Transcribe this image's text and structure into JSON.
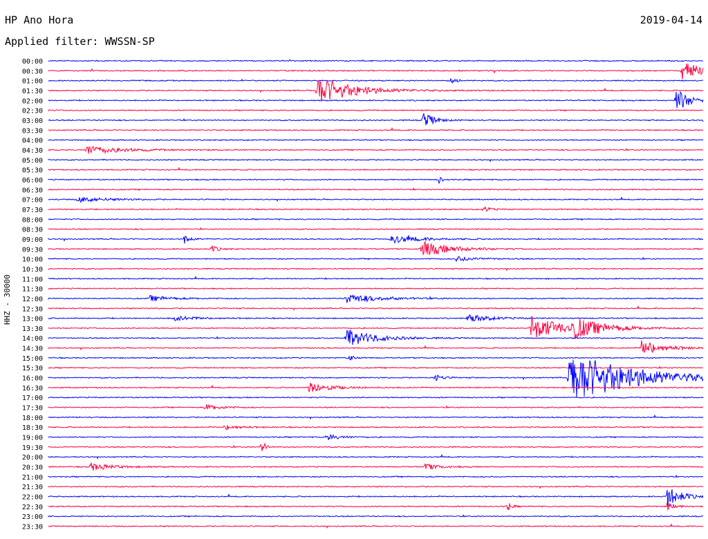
{
  "header": {
    "station": "HP Ano Hora",
    "date": "2019-04-14",
    "filter": "Applied filter: WWSSN-SP"
  },
  "yaxis_label": "HHZ - 30000",
  "colors": {
    "even_trace": "#0000ff",
    "odd_trace": "#ff0040",
    "text": "#000000"
  },
  "chart_data": {
    "type": "helicorder",
    "row_labels": [
      "00:00",
      "00:30",
      "01:00",
      "01:30",
      "02:00",
      "02:30",
      "03:00",
      "03:30",
      "04:00",
      "04:30",
      "05:00",
      "05:30",
      "06:00",
      "06:30",
      "07:00",
      "07:30",
      "08:00",
      "08:30",
      "09:00",
      "09:30",
      "10:00",
      "10:30",
      "11:00",
      "11:30",
      "12:00",
      "12:30",
      "13:00",
      "13:30",
      "14:00",
      "14:30",
      "15:00",
      "15:30",
      "16:00",
      "16:30",
      "17:00",
      "17:30",
      "18:00",
      "18:30",
      "19:00",
      "19:30",
      "20:00",
      "20:30",
      "21:00",
      "21:30",
      "22:00",
      "22:30",
      "23:00",
      "23:30"
    ],
    "row_minutes": 30,
    "events": [
      {
        "row": 1,
        "t": 0.968,
        "amp": 0.95,
        "dur": 0.035
      },
      {
        "row": 2,
        "t": 0.612,
        "amp": 0.35,
        "dur": 0.01
      },
      {
        "row": 3,
        "t": 0.41,
        "amp": 1.6,
        "dur": 0.05
      },
      {
        "row": 4,
        "t": 0.958,
        "amp": 1.3,
        "dur": 0.02
      },
      {
        "row": 6,
        "t": 0.572,
        "amp": 0.9,
        "dur": 0.015
      },
      {
        "row": 9,
        "t": 0.058,
        "amp": 0.5,
        "dur": 0.05
      },
      {
        "row": 12,
        "t": 0.596,
        "amp": 0.4,
        "dur": 0.005
      },
      {
        "row": 14,
        "t": 0.045,
        "amp": 0.3,
        "dur": 0.04
      },
      {
        "row": 15,
        "t": 0.665,
        "amp": 0.3,
        "dur": 0.01
      },
      {
        "row": 18,
        "t": 0.208,
        "amp": 0.6,
        "dur": 0.008
      },
      {
        "row": 18,
        "t": 0.523,
        "amp": 0.45,
        "dur": 0.04
      },
      {
        "row": 19,
        "t": 0.57,
        "amp": 0.9,
        "dur": 0.04
      },
      {
        "row": 19,
        "t": 0.25,
        "amp": 0.35,
        "dur": 0.01
      },
      {
        "row": 20,
        "t": 0.62,
        "amp": 0.3,
        "dur": 0.03
      },
      {
        "row": 24,
        "t": 0.455,
        "amp": 0.5,
        "dur": 0.05
      },
      {
        "row": 24,
        "t": 0.155,
        "amp": 0.3,
        "dur": 0.03
      },
      {
        "row": 26,
        "t": 0.64,
        "amp": 0.5,
        "dur": 0.03
      },
      {
        "row": 26,
        "t": 0.19,
        "amp": 0.3,
        "dur": 0.03
      },
      {
        "row": 27,
        "t": 0.735,
        "amp": 1.4,
        "dur": 0.05
      },
      {
        "row": 27,
        "t": 0.8,
        "amp": 1.0,
        "dur": 0.04
      },
      {
        "row": 28,
        "t": 0.455,
        "amp": 1.0,
        "dur": 0.04
      },
      {
        "row": 29,
        "t": 0.905,
        "amp": 0.9,
        "dur": 0.03
      },
      {
        "row": 30,
        "t": 0.46,
        "amp": 0.4,
        "dur": 0.006
      },
      {
        "row": 32,
        "t": 0.59,
        "amp": 0.5,
        "dur": 0.01
      },
      {
        "row": 32,
        "t": 0.795,
        "amp": 3.0,
        "dur": 0.09
      },
      {
        "row": 33,
        "t": 0.398,
        "amp": 0.6,
        "dur": 0.03
      },
      {
        "row": 35,
        "t": 0.24,
        "amp": 0.35,
        "dur": 0.02
      },
      {
        "row": 37,
        "t": 0.27,
        "amp": 0.3,
        "dur": 0.02
      },
      {
        "row": 38,
        "t": 0.425,
        "amp": 0.35,
        "dur": 0.02
      },
      {
        "row": 39,
        "t": 0.325,
        "amp": 0.8,
        "dur": 0.006
      },
      {
        "row": 41,
        "t": 0.065,
        "amp": 0.45,
        "dur": 0.03
      },
      {
        "row": 41,
        "t": 0.575,
        "amp": 0.35,
        "dur": 0.02
      },
      {
        "row": 44,
        "t": 0.945,
        "amp": 1.2,
        "dur": 0.02
      },
      {
        "row": 45,
        "t": 0.7,
        "amp": 0.6,
        "dur": 0.006
      },
      {
        "row": 45,
        "t": 0.945,
        "amp": 0.6,
        "dur": 0.01
      }
    ]
  }
}
